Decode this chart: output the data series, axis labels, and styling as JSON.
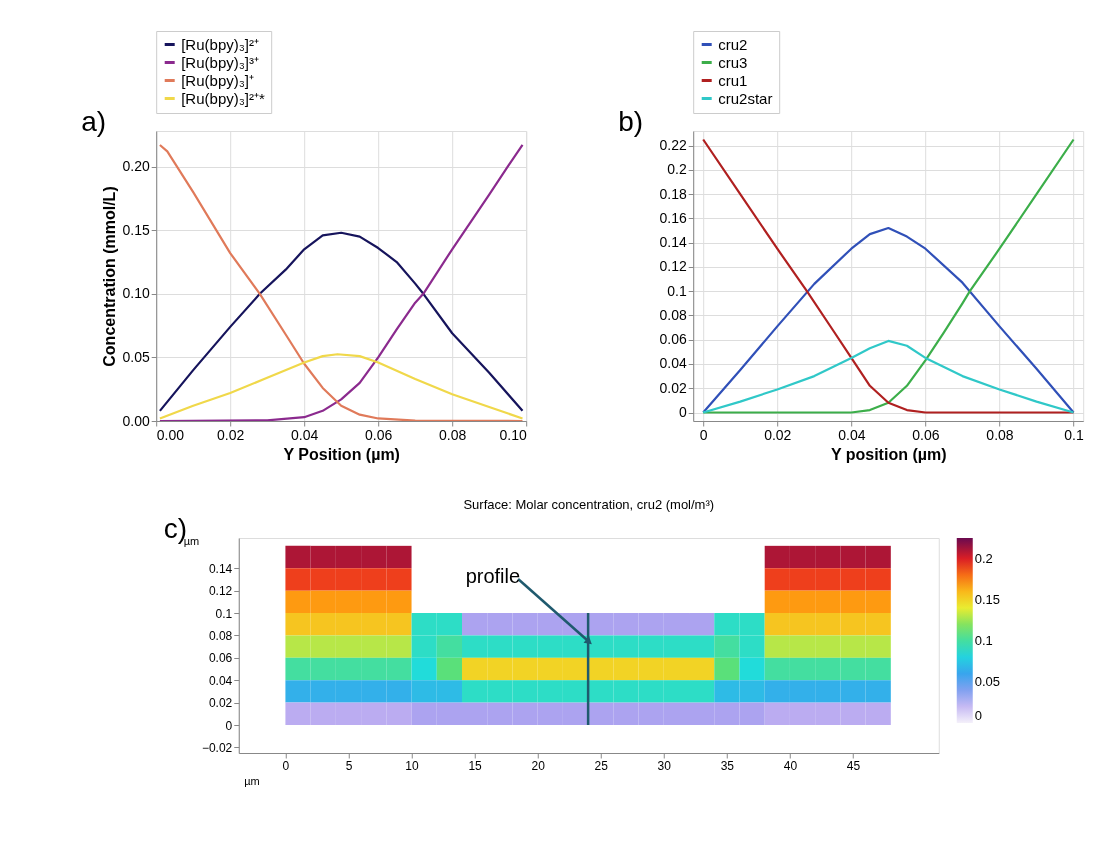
{
  "chart_data": [
    {
      "type": "line",
      "xlabel": "Y Position (µm)",
      "ylabel": "Concentration (mmol/L)",
      "annotations": [
        "a)"
      ],
      "xlim": [
        0,
        0.1
      ],
      "ylim": [
        0,
        0.228
      ],
      "xticks": [
        {
          "value": 0,
          "label": "0.00"
        },
        {
          "value": 0.02,
          "label": "0.02"
        },
        {
          "value": 0.04,
          "label": "0.04"
        },
        {
          "value": 0.06,
          "label": "0.06"
        },
        {
          "value": 0.08,
          "label": "0.08"
        },
        {
          "value": 0.1,
          "label": "0.10"
        }
      ],
      "yticks": [
        {
          "value": 0,
          "label": "0.00"
        },
        {
          "value": 0.05,
          "label": "0.05"
        },
        {
          "value": 0.1,
          "label": "0.10"
        },
        {
          "value": 0.15,
          "label": "0.15"
        },
        {
          "value": 0.2,
          "label": "0.20"
        }
      ],
      "grid": true,
      "legend": "top",
      "line_style": "solid",
      "marker": "none",
      "series": [
        {
          "name": "[Ru(bpy)₃]²⁺",
          "color": "#16145c",
          "x": [
            0.001,
            0.01,
            0.02,
            0.028,
            0.035,
            0.04,
            0.045,
            0.05,
            0.055,
            0.06,
            0.065,
            0.07,
            0.0722,
            0.08,
            0.09,
            0.099
          ],
          "values": [
            0.008,
            0.04,
            0.074,
            0.1,
            0.119,
            0.135,
            0.146,
            0.148,
            0.145,
            0.136,
            0.125,
            0.108,
            0.1,
            0.069,
            0.038,
            0.008
          ]
        },
        {
          "name": "[Ru(bpy)₃]³⁺",
          "color": "#8b2a8e",
          "x": [
            0.001,
            0.03,
            0.04,
            0.045,
            0.05,
            0.055,
            0.06,
            0.065,
            0.07,
            0.0722,
            0.08,
            0.09,
            0.095,
            0.099
          ],
          "values": [
            0,
            0.0005,
            0.003,
            0.008,
            0.017,
            0.03,
            0.05,
            0.072,
            0.093,
            0.1,
            0.135,
            0.178,
            0.2,
            0.217
          ]
        },
        {
          "name": "[Ru(bpy)₃]⁺",
          "color": "#e07a5a",
          "x": [
            0.001,
            0.003,
            0.01,
            0.02,
            0.028,
            0.035,
            0.04,
            0.045,
            0.05,
            0.055,
            0.06,
            0.07,
            0.099
          ],
          "values": [
            0.217,
            0.212,
            0.18,
            0.132,
            0.1,
            0.068,
            0.045,
            0.026,
            0.012,
            0.005,
            0.002,
            0.0003,
            0
          ]
        },
        {
          "name": "[Ru(bpy)₃]²⁺*",
          "color": "#f0d84a",
          "x": [
            0.001,
            0.01,
            0.02,
            0.03,
            0.04,
            0.045,
            0.049,
            0.055,
            0.06,
            0.07,
            0.08,
            0.09,
            0.099
          ],
          "values": [
            0.002,
            0.012,
            0.022,
            0.034,
            0.046,
            0.051,
            0.0525,
            0.051,
            0.046,
            0.033,
            0.021,
            0.011,
            0.002
          ]
        }
      ]
    },
    {
      "type": "line",
      "xlabel": "Y position (µm)",
      "annotations": [
        "b)"
      ],
      "xlim": [
        -0.0027,
        0.1026
      ],
      "ylim": [
        -0.007,
        0.232
      ],
      "xticks": [
        0,
        0.02,
        0.04,
        0.06,
        0.08,
        0.1
      ],
      "yticks": [
        0,
        0.02,
        0.04,
        0.06,
        0.08,
        0.1,
        0.12,
        0.14,
        0.16,
        0.18,
        0.2,
        0.22
      ],
      "grid": true,
      "legend": "top",
      "line_style": "solid",
      "marker": "none",
      "series": [
        {
          "name": "cru2",
          "color": "#3050b8",
          "x": [
            0,
            0.01,
            0.02,
            0.03,
            0.04,
            0.045,
            0.05,
            0.055,
            0.06,
            0.07,
            0.08,
            0.09,
            0.1
          ],
          "values": [
            0,
            0.035,
            0.071,
            0.106,
            0.135,
            0.147,
            0.152,
            0.145,
            0.135,
            0.107,
            0.071,
            0.036,
            0
          ]
        },
        {
          "name": "cru3",
          "color": "#3cae4a",
          "x": [
            0,
            0.04,
            0.045,
            0.05,
            0.055,
            0.06,
            0.065,
            0.07,
            0.072,
            0.08,
            0.09,
            0.1
          ],
          "values": [
            0,
            0,
            0.002,
            0.008,
            0.022,
            0.043,
            0.066,
            0.09,
            0.1,
            0.135,
            0.18,
            0.225
          ]
        },
        {
          "name": "cru1",
          "color": "#b02020",
          "x": [
            0,
            0.01,
            0.02,
            0.028,
            0.035,
            0.04,
            0.045,
            0.05,
            0.055,
            0.06,
            0.1
          ],
          "values": [
            0.225,
            0.18,
            0.135,
            0.1,
            0.068,
            0.045,
            0.022,
            0.008,
            0.002,
            0,
            0
          ]
        },
        {
          "name": "cru2star",
          "color": "#30c8c8",
          "x": [
            0,
            0.01,
            0.02,
            0.03,
            0.04,
            0.045,
            0.05,
            0.055,
            0.06,
            0.07,
            0.08,
            0.09,
            0.1
          ],
          "values": [
            0,
            0.009,
            0.019,
            0.03,
            0.045,
            0.053,
            0.059,
            0.055,
            0.045,
            0.03,
            0.019,
            0.009,
            0
          ]
        }
      ]
    },
    {
      "type": "heatmap",
      "title": "Surface: Molar concentration, cru2 (mol/m³)",
      "xlabel": "µm",
      "ylabel": "µm",
      "annotations": [
        "c)",
        {
          "text": "profile",
          "x": 24,
          "y": 0.075
        }
      ],
      "ref_lines": [
        {
          "axis": "x",
          "value": 24,
          "color": "#1f5a6e"
        }
      ],
      "xlim": [
        -3.7,
        51.8
      ],
      "ylim": [
        -0.025,
        0.167
      ],
      "xticks": [
        0,
        5,
        10,
        15,
        20,
        25,
        30,
        35,
        40,
        45
      ],
      "yticks": [
        -0.02,
        0,
        0.02,
        0.04,
        0.06,
        0.08,
        0.1,
        0.12,
        0.14
      ],
      "clim": [
        0,
        0.225
      ],
      "cticks": [
        0,
        0.05,
        0.1,
        0.15,
        0.2
      ],
      "colors": [
        "#f4f0fa",
        "#b4a4f0",
        "#3c9cf0",
        "#20dcdc",
        "#60e070",
        "#ecec30",
        "#ffa010",
        "#e82020",
        "#6a0a50"
      ],
      "x": [
        1,
        3,
        5,
        7,
        9,
        11,
        13,
        15,
        17,
        19,
        21,
        23,
        25,
        27,
        29,
        31,
        33,
        35,
        37,
        39,
        41,
        43,
        45,
        47
      ],
      "y": [
        0.15,
        0.13,
        0.11,
        0.09,
        0.07,
        0.05,
        0.03,
        0.01
      ],
      "cells": [
        [
          0.21,
          0.21,
          0.21,
          0.21,
          0.21,
          null,
          null,
          null,
          null,
          null,
          null,
          null,
          null,
          null,
          null,
          null,
          null,
          null,
          null,
          0.21,
          0.21,
          0.21,
          0.21,
          0.21
        ],
        [
          0.19,
          0.19,
          0.19,
          0.19,
          0.19,
          null,
          null,
          null,
          null,
          null,
          null,
          null,
          null,
          null,
          null,
          null,
          null,
          null,
          null,
          0.19,
          0.19,
          0.19,
          0.19,
          0.19
        ],
        [
          0.17,
          0.17,
          0.17,
          0.17,
          0.17,
          null,
          null,
          null,
          null,
          null,
          null,
          null,
          null,
          null,
          null,
          null,
          null,
          null,
          null,
          0.17,
          0.17,
          0.17,
          0.17,
          0.17
        ],
        [
          0.155,
          0.155,
          0.155,
          0.155,
          0.155,
          0.09,
          0.09,
          0.03,
          0.03,
          0.03,
          0.03,
          0.03,
          0.03,
          0.03,
          0.03,
          0.03,
          0.03,
          0.09,
          0.09,
          0.155,
          0.155,
          0.155,
          0.155,
          0.155
        ],
        [
          0.13,
          0.13,
          0.13,
          0.13,
          0.13,
          0.09,
          0.1,
          0.09,
          0.09,
          0.09,
          0.09,
          0.09,
          0.09,
          0.09,
          0.09,
          0.09,
          0.09,
          0.1,
          0.09,
          0.13,
          0.13,
          0.13,
          0.13,
          0.13
        ],
        [
          0.1,
          0.1,
          0.1,
          0.1,
          0.1,
          0.085,
          0.11,
          0.15,
          0.15,
          0.15,
          0.15,
          0.15,
          0.15,
          0.15,
          0.15,
          0.15,
          0.15,
          0.11,
          0.085,
          0.1,
          0.1,
          0.1,
          0.1,
          0.1
        ],
        [
          0.065,
          0.065,
          0.065,
          0.065,
          0.065,
          0.07,
          0.07,
          0.09,
          0.09,
          0.09,
          0.09,
          0.09,
          0.09,
          0.09,
          0.09,
          0.09,
          0.09,
          0.07,
          0.07,
          0.065,
          0.065,
          0.065,
          0.065,
          0.065
        ],
        [
          0.025,
          0.025,
          0.025,
          0.025,
          0.025,
          0.03,
          0.03,
          0.03,
          0.03,
          0.03,
          0.03,
          0.03,
          0.03,
          0.03,
          0.03,
          0.03,
          0.03,
          0.03,
          0.03,
          0.025,
          0.025,
          0.025,
          0.025,
          0.025
        ]
      ]
    }
  ]
}
